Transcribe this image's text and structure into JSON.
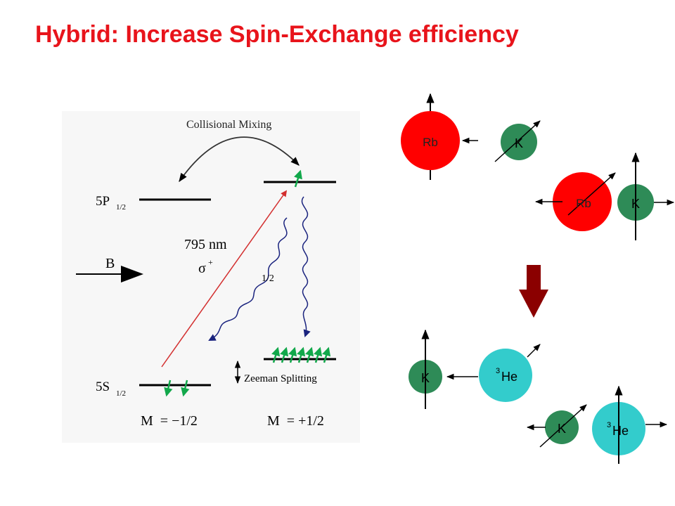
{
  "title": "Hybrid: Increase Spin-Exchange efficiency",
  "energy_diagram": {
    "collisional_mixing": "Collisional Mixing",
    "level_5p": "5P",
    "level_5p_sub": "1/2",
    "level_5s": "5S",
    "level_5s_sub": "1/2",
    "wavelength": "795 nm",
    "polarization": "σ",
    "polarization_sup": "+",
    "branching": "1/2",
    "field": "B",
    "zeeman": "Zeeman Splitting",
    "m_minus": "M  = −1/2",
    "m_plus": "M  = +1/2"
  },
  "atoms": {
    "rb_label": "Rb",
    "k_label": "K",
    "he_label": "He",
    "he_mass": "3"
  },
  "colors": {
    "title": "#e8141b",
    "rb": "#ff0000",
    "k": "#2e8b57",
    "he3": "#33cccc",
    "down_arrow": "#8b0000",
    "laser": "#d32f2f",
    "decay": "#1a237e",
    "spin_arrow": "#12a84b"
  }
}
